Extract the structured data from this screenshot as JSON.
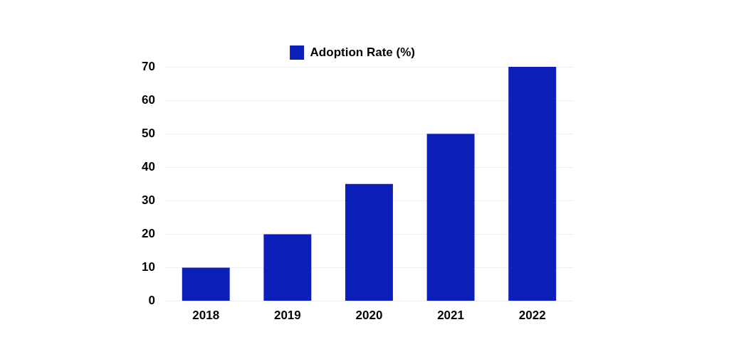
{
  "chart_data": {
    "type": "bar",
    "categories": [
      "2018",
      "2019",
      "2020",
      "2021",
      "2022"
    ],
    "series": [
      {
        "name": "Adoption Rate (%)",
        "color": "#0c1fbb",
        "values": [
          10,
          20,
          35,
          50,
          70
        ]
      }
    ],
    "ylim": [
      0,
      70
    ],
    "yticks": [
      0,
      10,
      20,
      30,
      40,
      50,
      60,
      70
    ],
    "grid": true,
    "legend": "top"
  }
}
